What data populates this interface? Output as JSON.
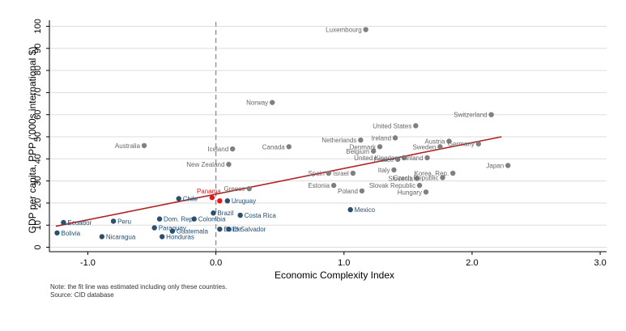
{
  "chart_data": {
    "type": "scatter",
    "xlabel": "Economic Complexity Index",
    "ylabel": "GDP per capita, PPP ('000s international $)",
    "xlim": [
      -1.3,
      3.05
    ],
    "ylim": [
      -2,
      102
    ],
    "xticks": [
      -1.0,
      0.0,
      1.0,
      2.0,
      3.0
    ],
    "xtick_labels": [
      "-1.0",
      "0.0",
      "1.0",
      "2.0",
      "3.0"
    ],
    "yticks": [
      0,
      10,
      20,
      30,
      40,
      50,
      60,
      70,
      80,
      90,
      100
    ],
    "ytick_labels": [
      "0",
      "10",
      "20",
      "30",
      "40",
      "50",
      "60",
      "70",
      "80",
      "90",
      "100"
    ],
    "reference_line_x": 0.0,
    "fit_line": {
      "x": [
        -1.25,
        2.23
      ],
      "y": [
        9.5,
        50.0
      ]
    },
    "colors": {
      "grey_points": "#808080",
      "blue_points": "#2c4f6e",
      "highlight": "#e8161b",
      "fit": "#b22222",
      "grey_label": "#666666",
      "blue_label": "#1f4e79"
    },
    "series": [
      {
        "group": "grey",
        "points": [
          {
            "label": "Luxembourg",
            "x": 1.17,
            "y": 98.5,
            "side": "left"
          },
          {
            "label": "Norway",
            "x": 0.44,
            "y": 65.5,
            "side": "left"
          },
          {
            "label": "Switzerland",
            "x": 2.15,
            "y": 60.0,
            "side": "left"
          },
          {
            "label": "United States",
            "x": 1.56,
            "y": 55.0,
            "side": "left"
          },
          {
            "label": "Australia",
            "x": -0.56,
            "y": 46.0,
            "side": "left"
          },
          {
            "label": "Canada",
            "x": 0.57,
            "y": 45.5,
            "side": "left"
          },
          {
            "label": "Iceland",
            "x": 0.13,
            "y": 44.5,
            "side": "left"
          },
          {
            "label": "Netherlands",
            "x": 1.13,
            "y": 48.5,
            "side": "left"
          },
          {
            "label": "Ireland",
            "x": 1.4,
            "y": 49.5,
            "side": "left"
          },
          {
            "label": "Denmark",
            "x": 1.28,
            "y": 45.5,
            "side": "left"
          },
          {
            "label": "Belgium",
            "x": 1.23,
            "y": 43.5,
            "side": "left"
          },
          {
            "label": "Austria",
            "x": 1.82,
            "y": 48.0,
            "side": "left"
          },
          {
            "label": "Germany",
            "x": 2.05,
            "y": 46.8,
            "side": "left"
          },
          {
            "label": "Sweden",
            "x": 1.75,
            "y": 45.5,
            "side": "left"
          },
          {
            "label": "United Kingdom",
            "x": 1.47,
            "y": 40.5,
            "side": "left"
          },
          {
            "label": "Finland",
            "x": 1.65,
            "y": 40.5,
            "side": "left"
          },
          {
            "label": "France",
            "x": 1.42,
            "y": 39.8,
            "side": "left"
          },
          {
            "label": "New Zealand",
            "x": 0.1,
            "y": 37.5,
            "side": "left"
          },
          {
            "label": "Japan",
            "x": 2.28,
            "y": 37.0,
            "side": "left"
          },
          {
            "label": "Italy",
            "x": 1.39,
            "y": 35.0,
            "side": "left"
          },
          {
            "label": "Spain",
            "x": 0.88,
            "y": 33.5,
            "side": "left"
          },
          {
            "label": "Israel",
            "x": 1.07,
            "y": 33.5,
            "side": "left"
          },
          {
            "label": "Korea, Rep.",
            "x": 1.85,
            "y": 33.5,
            "side": "left"
          },
          {
            "label": "Czech Republic",
            "x": 1.77,
            "y": 31.5,
            "side": "left"
          },
          {
            "label": "Slovenia",
            "x": 1.57,
            "y": 31.2,
            "side": "left"
          },
          {
            "label": "Estonia",
            "x": 0.92,
            "y": 28.0,
            "side": "left"
          },
          {
            "label": "Slovak Republic",
            "x": 1.59,
            "y": 28.0,
            "side": "left"
          },
          {
            "label": "Greece",
            "x": 0.26,
            "y": 26.5,
            "side": "left"
          },
          {
            "label": "Poland",
            "x": 1.14,
            "y": 25.5,
            "side": "left"
          },
          {
            "label": "Hungary",
            "x": 1.64,
            "y": 25.0,
            "side": "left"
          }
        ]
      },
      {
        "group": "blue",
        "points": [
          {
            "label": "Chile",
            "x": -0.29,
            "y": 22.0,
            "side": "right"
          },
          {
            "label": "Uruguay",
            "x": 0.09,
            "y": 21.0,
            "side": "right"
          },
          {
            "label": "Brazil",
            "x": -0.02,
            "y": 15.5,
            "side": "right"
          },
          {
            "label": "Costa Rica",
            "x": 0.19,
            "y": 14.5,
            "side": "right"
          },
          {
            "label": "Mexico",
            "x": 1.05,
            "y": 17.0,
            "side": "right"
          },
          {
            "label": "Ecuador",
            "x": -1.19,
            "y": 11.2,
            "side": "right"
          },
          {
            "label": "Peru",
            "x": -0.8,
            "y": 11.8,
            "side": "right"
          },
          {
            "label": "Dom. Rep.",
            "x": -0.44,
            "y": 12.8,
            "side": "right"
          },
          {
            "label": "Colombia",
            "x": -0.17,
            "y": 12.8,
            "side": "right"
          },
          {
            "label": "Paraguay",
            "x": -0.48,
            "y": 8.8,
            "side": "right"
          },
          {
            "label": "Guatemala",
            "x": -0.34,
            "y": 7.3,
            "side": "right"
          },
          {
            "label": "Belize",
            "x": 0.03,
            "y": 8.2,
            "side": "right"
          },
          {
            "label": "El Salvador",
            "x": 0.1,
            "y": 8.2,
            "side": "right"
          },
          {
            "label": "Bolivia",
            "x": -1.24,
            "y": 6.5,
            "side": "right"
          },
          {
            "label": "Nicaragua",
            "x": -0.89,
            "y": 4.8,
            "side": "right"
          },
          {
            "label": "Honduras",
            "x": -0.42,
            "y": 4.8,
            "side": "right"
          }
        ]
      },
      {
        "group": "highlight",
        "points": [
          {
            "label": "Panama",
            "x": -0.03,
            "y": 22.5,
            "side": "above"
          },
          {
            "label": "",
            "x": 0.03,
            "y": 21.0,
            "side": "none"
          }
        ]
      }
    ]
  },
  "notes": {
    "note": "Note: the fit line was estimated including only these countries.",
    "source": "Source: CID database"
  }
}
